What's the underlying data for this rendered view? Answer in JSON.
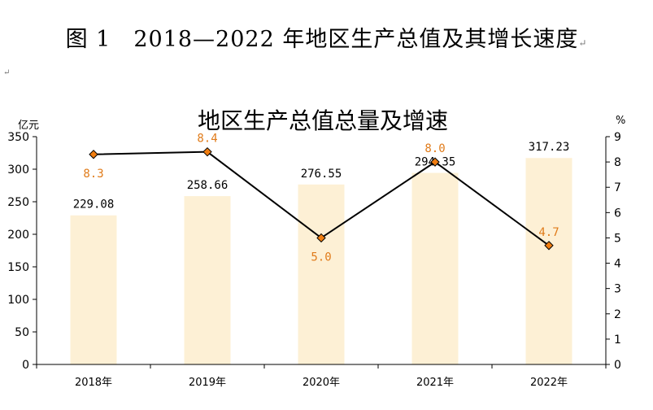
{
  "page": {
    "caption": "图 1　2018—2022 年地区生产总值及其增长速度",
    "return_mark": "↵",
    "small_mark": "↵"
  },
  "chart_data": {
    "type": "bar",
    "title": "地区生产总值总量及增速",
    "categories": [
      "2018年",
      "2019年",
      "2020年",
      "2021年",
      "2022年"
    ],
    "series": [
      {
        "kind": "bar",
        "axis": "left",
        "values": [
          229.08,
          258.66,
          276.55,
          294.35,
          317.23
        ],
        "color": "#fdf0d5"
      },
      {
        "kind": "line",
        "axis": "right",
        "values": [
          8.3,
          8.4,
          5.0,
          8.0,
          4.7
        ],
        "color": "#000000",
        "marker_color": "#f07d10",
        "label_color": "#e07b1a"
      }
    ],
    "y_left": {
      "unit": "亿元",
      "ylim": [
        0,
        350
      ],
      "ticks": [
        0,
        50,
        100,
        150,
        200,
        250,
        300,
        350
      ]
    },
    "y_right": {
      "unit": "%",
      "ylim": [
        0,
        9
      ],
      "ticks": [
        0,
        1,
        2,
        3,
        4,
        5,
        6,
        7,
        8,
        9
      ]
    },
    "bar_labels": [
      "229.08",
      "258.66",
      "276.55",
      "294.35",
      "317.23"
    ],
    "line_labels": [
      "8.3",
      "8.4",
      "5.0",
      "8.0",
      "4.7"
    ],
    "grid": false,
    "legend": "none"
  }
}
